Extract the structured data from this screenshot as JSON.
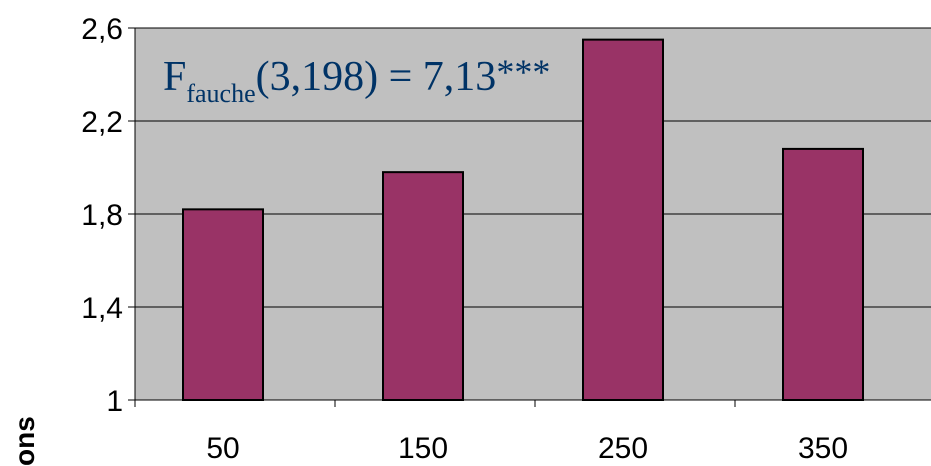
{
  "chart_data": {
    "type": "bar",
    "categories": [
      "50",
      "150",
      "250",
      "350"
    ],
    "values": [
      1.82,
      1.98,
      2.55,
      2.08
    ],
    "ylim": [
      1,
      2.6
    ],
    "yticks": [
      "1",
      "1,4",
      "1,8",
      "2,2",
      "2,6"
    ],
    "ytick_values": [
      1,
      1.4,
      1.8,
      2.2,
      2.6
    ],
    "ylabel": "ons",
    "grid": true,
    "annotation": {
      "main": "F",
      "subscript": "fauche",
      "rest": "(3,198) = 7,13",
      "stars": "***"
    },
    "colors": {
      "bar": "#993366",
      "plot_bg": "#c0c0c0",
      "annotation": "#003366"
    }
  }
}
